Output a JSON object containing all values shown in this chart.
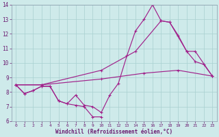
{
  "xlabel": "Windchill (Refroidissement éolien,°C)",
  "line1_x": [
    0,
    1,
    2,
    3,
    4,
    5,
    6,
    7,
    8,
    9,
    10,
    11,
    12,
    13,
    14,
    15,
    16,
    17,
    18,
    19,
    20,
    21,
    22,
    23
  ],
  "line1_y": [
    8.5,
    7.9,
    8.1,
    8.4,
    8.4,
    7.4,
    7.2,
    7.8,
    7.1,
    7.0,
    6.6,
    7.8,
    8.6,
    10.5,
    12.2,
    13.0,
    14.0,
    12.9,
    12.8,
    11.9,
    10.8,
    10.1,
    9.9,
    9.1
  ],
  "line2_x": [
    0,
    1,
    2,
    3,
    4,
    5,
    6,
    7,
    8,
    9,
    10
  ],
  "line2_y": [
    8.5,
    7.9,
    8.1,
    8.4,
    8.4,
    7.4,
    7.2,
    7.1,
    7.0,
    6.3,
    6.3
  ],
  "line3_x": [
    0,
    3,
    10,
    15,
    19,
    23
  ],
  "line3_y": [
    8.5,
    8.5,
    8.9,
    9.3,
    9.5,
    9.1
  ],
  "line4_x": [
    0,
    3,
    10,
    14,
    17,
    18,
    20,
    21,
    23
  ],
  "line4_y": [
    8.5,
    8.5,
    9.5,
    10.8,
    12.9,
    12.8,
    10.8,
    10.8,
    9.1
  ],
  "color": "#a0208a",
  "background": "#ceeaea",
  "grid_color": "#a8d0d0",
  "ylim": [
    6,
    14
  ],
  "yticks": [
    6,
    7,
    8,
    9,
    10,
    11,
    12,
    13,
    14
  ],
  "xticks": [
    0,
    1,
    2,
    3,
    4,
    5,
    6,
    7,
    8,
    9,
    10,
    11,
    12,
    13,
    14,
    15,
    16,
    17,
    18,
    19,
    20,
    21,
    22,
    23
  ]
}
